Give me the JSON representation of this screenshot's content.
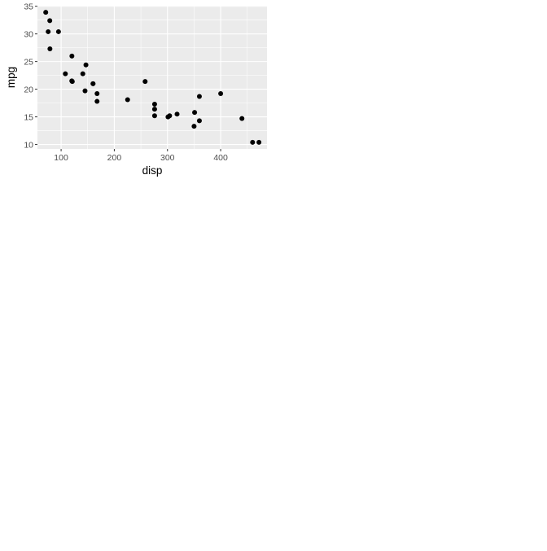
{
  "chart_data": {
    "type": "scatter",
    "title": "",
    "xlabel": "disp",
    "ylabel": "mpg",
    "xlim": [
      55.5,
      487.1
    ],
    "ylim": [
      9.2,
      35.1
    ],
    "x_ticks": [
      100,
      200,
      300,
      400
    ],
    "y_ticks": [
      10,
      15,
      20,
      25,
      30,
      35
    ],
    "grid": true,
    "legend": "none",
    "colors": {
      "panel_background": "#ebebeb",
      "grid_major": "#ffffff",
      "point": "#000000"
    },
    "points": [
      {
        "x": 160,
        "y": 21.0
      },
      {
        "x": 160,
        "y": 21.0
      },
      {
        "x": 108,
        "y": 22.8
      },
      {
        "x": 258,
        "y": 21.4
      },
      {
        "x": 360,
        "y": 18.7
      },
      {
        "x": 225,
        "y": 18.1
      },
      {
        "x": 360,
        "y": 14.3
      },
      {
        "x": 146.7,
        "y": 24.4
      },
      {
        "x": 140.8,
        "y": 22.8
      },
      {
        "x": 167.6,
        "y": 19.2
      },
      {
        "x": 167.6,
        "y": 17.8
      },
      {
        "x": 275.8,
        "y": 16.4
      },
      {
        "x": 275.8,
        "y": 17.3
      },
      {
        "x": 275.8,
        "y": 15.2
      },
      {
        "x": 472,
        "y": 10.4
      },
      {
        "x": 460,
        "y": 10.4
      },
      {
        "x": 440,
        "y": 14.7
      },
      {
        "x": 78.7,
        "y": 32.4
      },
      {
        "x": 75.7,
        "y": 30.4
      },
      {
        "x": 71.1,
        "y": 33.9
      },
      {
        "x": 120.1,
        "y": 21.5
      },
      {
        "x": 318,
        "y": 15.5
      },
      {
        "x": 304,
        "y": 15.2
      },
      {
        "x": 350,
        "y": 13.3
      },
      {
        "x": 400,
        "y": 19.2
      },
      {
        "x": 79,
        "y": 27.3
      },
      {
        "x": 120.3,
        "y": 26.0
      },
      {
        "x": 95.1,
        "y": 30.4
      },
      {
        "x": 351,
        "y": 15.8
      },
      {
        "x": 145,
        "y": 19.7
      },
      {
        "x": 301,
        "y": 15.0
      },
      {
        "x": 121,
        "y": 21.4
      }
    ]
  }
}
